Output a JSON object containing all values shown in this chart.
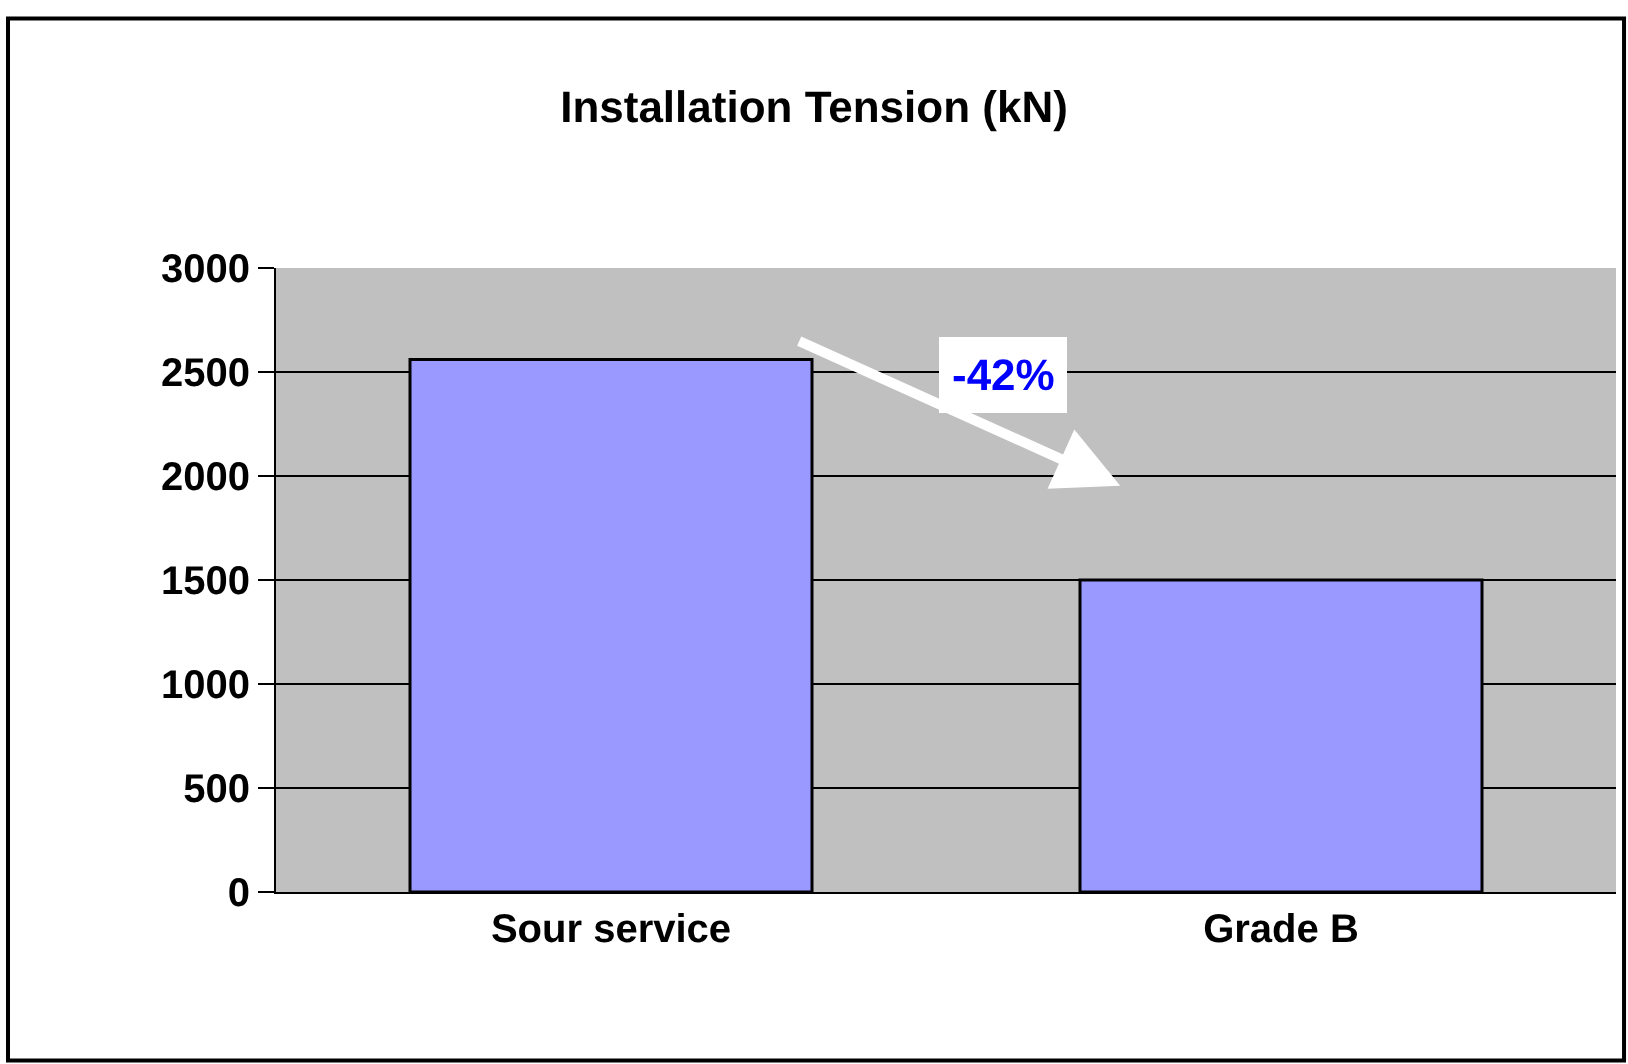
{
  "chart_data": {
    "type": "bar",
    "title": "Installation Tension (kN)",
    "categories": [
      "Sour service",
      "Grade B"
    ],
    "series": [
      {
        "color": "#9999ff",
        "values": [
          2560,
          1500
        ]
      }
    ],
    "ylim": [
      0,
      3000
    ],
    "yticks": [
      0,
      500,
      1000,
      1500,
      2000,
      2500,
      3000
    ],
    "grid": "y",
    "annotations": [
      "-42%"
    ]
  }
}
